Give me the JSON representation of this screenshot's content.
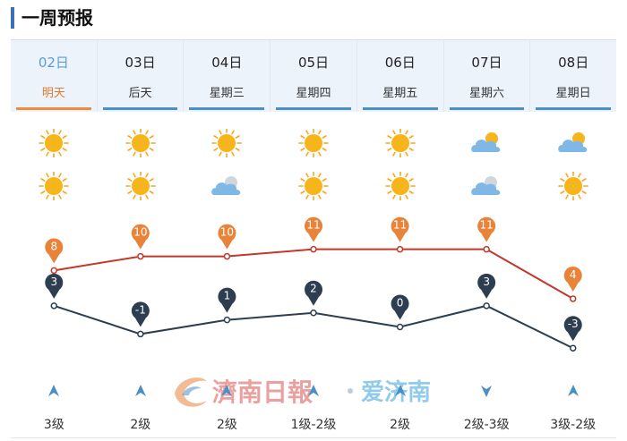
{
  "header": {
    "title": "一周预报"
  },
  "days": [
    {
      "date": "02日",
      "label": "明天",
      "active": true
    },
    {
      "date": "03日",
      "label": "后天"
    },
    {
      "date": "04日",
      "label": "星期三"
    },
    {
      "date": "05日",
      "label": "星期四"
    },
    {
      "date": "06日",
      "label": "星期五"
    },
    {
      "date": "07日",
      "label": "星期六"
    },
    {
      "date": "08日",
      "label": "星期日"
    }
  ],
  "weather_icons": [
    {
      "day": "sunny-icon",
      "night": "sunny-icon"
    },
    {
      "day": "sunny-icon",
      "night": "sunny-icon"
    },
    {
      "day": "sunny-icon",
      "night": "cloudy-icon"
    },
    {
      "day": "sunny-icon",
      "night": "sunny-icon"
    },
    {
      "day": "sunny-icon",
      "night": "sunny-icon"
    },
    {
      "day": "partly-cloudy-icon",
      "night": "cloudy-icon"
    },
    {
      "day": "partly-cloudy-icon",
      "night": "sunny-icon"
    }
  ],
  "chart_data": {
    "type": "line",
    "categories": [
      "02日",
      "03日",
      "04日",
      "05日",
      "06日",
      "07日",
      "08日"
    ],
    "series": [
      {
        "name": "high",
        "values": [
          8,
          10,
          10,
          11,
          11,
          11,
          4
        ],
        "color": "#c0392b",
        "marker": "#e8833a"
      },
      {
        "name": "low",
        "values": [
          3,
          -1,
          1,
          2,
          0,
          3,
          -3
        ],
        "color": "#2c3e50",
        "marker": "#2c3e50"
      }
    ]
  },
  "wind": [
    {
      "level": "3级"
    },
    {
      "level": "2级"
    },
    {
      "level": "2级"
    },
    {
      "level": "1级-2级"
    },
    {
      "level": "2级"
    },
    {
      "level": "2级-3级"
    },
    {
      "level": "3级-2级"
    }
  ],
  "watermark": {
    "text1": "濟南日報",
    "text2": "爱济南"
  },
  "colors": {
    "accent": "#f08a3c",
    "tab_blue": "#4a90c8",
    "tab_bg": "#ecf3fb"
  }
}
